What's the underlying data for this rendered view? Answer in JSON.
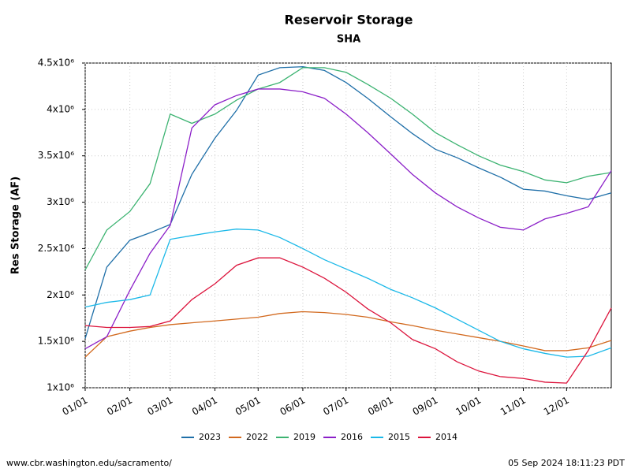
{
  "chart_data": {
    "type": "line",
    "title": "Reservoir Storage",
    "subtitle": "SHA",
    "y_label": "Res Storage (AF)",
    "source": "www.cbr.washington.edu/sacramento/",
    "timestamp": "05 Sep 2024 18:11:23 PDT",
    "grid": true,
    "x": [
      0,
      15,
      31,
      45,
      59,
      74,
      90,
      105,
      120,
      135,
      151,
      166,
      181,
      196,
      212,
      227,
      243,
      258,
      273,
      288,
      304,
      319,
      334,
      349,
      365
    ],
    "xlim": [
      0,
      365
    ],
    "xticks": [
      {
        "value": 0,
        "label": "01/01"
      },
      {
        "value": 31,
        "label": "02/01"
      },
      {
        "value": 59,
        "label": "03/01"
      },
      {
        "value": 90,
        "label": "04/01"
      },
      {
        "value": 120,
        "label": "05/01"
      },
      {
        "value": 151,
        "label": "06/01"
      },
      {
        "value": 181,
        "label": "07/01"
      },
      {
        "value": 212,
        "label": "08/01"
      },
      {
        "value": 243,
        "label": "09/01"
      },
      {
        "value": 273,
        "label": "10/01"
      },
      {
        "value": 304,
        "label": "11/01"
      },
      {
        "value": 334,
        "label": "12/01"
      }
    ],
    "ylim": [
      1000000,
      4500000
    ],
    "yticks": [
      {
        "value": 1000000,
        "label": "1x10⁶"
      },
      {
        "value": 1500000,
        "label": "1.5x10⁶"
      },
      {
        "value": 2000000,
        "label": "2x10⁶"
      },
      {
        "value": 2500000,
        "label": "2.5x10⁶"
      },
      {
        "value": 3000000,
        "label": "3x10⁶"
      },
      {
        "value": 3500000,
        "label": "3.5x10⁶"
      },
      {
        "value": 4000000,
        "label": "4x10⁶"
      },
      {
        "value": 4500000,
        "label": "4.5x10⁶"
      }
    ],
    "series": [
      {
        "name": "2023",
        "color": "#1f6fa8",
        "values": [
          1530000,
          2300000,
          2590000,
          2670000,
          2760000,
          3300000,
          3690000,
          3990000,
          4370000,
          4450000,
          4460000,
          4420000,
          4290000,
          4120000,
          3920000,
          3740000,
          3570000,
          3480000,
          3370000,
          3270000,
          3140000,
          3120000,
          3070000,
          3030000,
          3100000
        ]
      },
      {
        "name": "2022",
        "color": "#d2691e",
        "values": [
          1330000,
          1550000,
          1610000,
          1650000,
          1680000,
          1700000,
          1720000,
          1740000,
          1760000,
          1800000,
          1820000,
          1810000,
          1790000,
          1760000,
          1710000,
          1670000,
          1620000,
          1580000,
          1540000,
          1500000,
          1450000,
          1400000,
          1400000,
          1430000,
          1510000
        ]
      },
      {
        "name": "2019",
        "color": "#3cb371",
        "values": [
          2270000,
          2700000,
          2900000,
          3200000,
          3950000,
          3850000,
          3950000,
          4100000,
          4220000,
          4290000,
          4450000,
          4450000,
          4400000,
          4270000,
          4120000,
          3950000,
          3750000,
          3620000,
          3500000,
          3400000,
          3330000,
          3240000,
          3210000,
          3280000,
          3320000
        ]
      },
      {
        "name": "2016",
        "color": "#8b1fc8",
        "values": [
          1420000,
          1550000,
          2050000,
          2450000,
          2750000,
          3800000,
          4050000,
          4150000,
          4220000,
          4220000,
          4190000,
          4120000,
          3950000,
          3750000,
          3520000,
          3300000,
          3100000,
          2950000,
          2830000,
          2730000,
          2700000,
          2820000,
          2880000,
          2950000,
          3340000
        ]
      },
      {
        "name": "2015",
        "color": "#1ab8e8",
        "values": [
          1870000,
          1920000,
          1950000,
          2000000,
          2600000,
          2640000,
          2680000,
          2710000,
          2700000,
          2620000,
          2500000,
          2380000,
          2280000,
          2180000,
          2060000,
          1970000,
          1860000,
          1740000,
          1620000,
          1500000,
          1420000,
          1370000,
          1330000,
          1340000,
          1430000
        ]
      },
      {
        "name": "2014",
        "color": "#dc143c",
        "values": [
          1670000,
          1650000,
          1650000,
          1660000,
          1720000,
          1950000,
          2120000,
          2320000,
          2400000,
          2400000,
          2300000,
          2180000,
          2030000,
          1850000,
          1700000,
          1520000,
          1420000,
          1280000,
          1180000,
          1120000,
          1100000,
          1060000,
          1050000,
          1400000,
          1860000
        ]
      }
    ]
  }
}
